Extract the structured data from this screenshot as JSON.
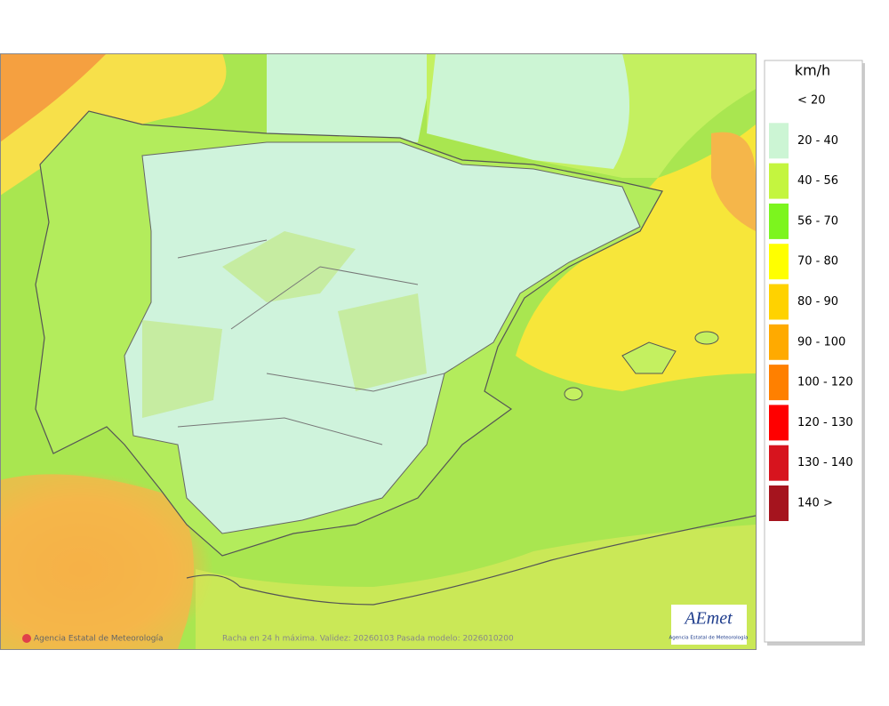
{
  "legend": {
    "title": "km/h",
    "items": [
      {
        "label": "< 20"
      },
      {
        "label": "20 - 40",
        "color": "#ccf5d4"
      },
      {
        "label": "40 - 56",
        "color": "#c4f53f"
      },
      {
        "label": "56 - 70",
        "color": "#7cf51e"
      },
      {
        "label": "70 - 80",
        "color": "#ffff00"
      },
      {
        "label": "80 - 90",
        "color": "#ffd200"
      },
      {
        "label": "90 - 100",
        "color": "#ffaa00"
      },
      {
        "label": "100 - 120",
        "color": "#ff8000"
      },
      {
        "label": "120 - 130",
        "color": "#ff0000"
      },
      {
        "label": "130 - 140",
        "color": "#d7141e"
      },
      {
        "label": "140 >",
        "color": "#a5141e"
      }
    ]
  },
  "footer": {
    "credit": "Agencia Estatal de Meteorología",
    "caption": "Racha en 24 h máxima. Validez: 20260103 Pasada modelo: 2026010200"
  },
  "logo": {
    "name": "AEmet",
    "subtitle": "Agencia Estatal de Meteorología"
  }
}
